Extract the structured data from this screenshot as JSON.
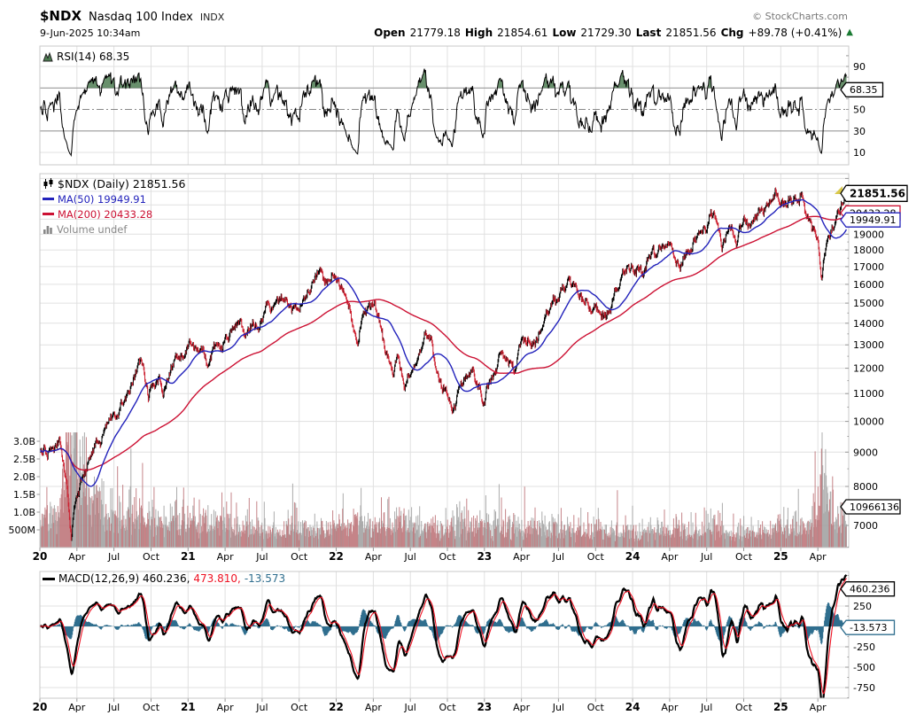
{
  "header": {
    "symbol": "$NDX",
    "name": "Nasdaq 100 Index",
    "exchange": "INDX",
    "datetime": "9-Jun-2025 10:34am",
    "credit": "© StockCharts.com",
    "quote": {
      "open_label": "Open",
      "open_value": "21779.18",
      "high_label": "High",
      "high_value": "21854.61",
      "low_label": "Low",
      "low_value": "21729.30",
      "last_label": "Last",
      "last_value": "21851.56",
      "chg_label": "Chg",
      "chg_value": "+89.78 (+0.41%)",
      "up_arrow": "▲"
    }
  },
  "rsi_panel": {
    "legend": "RSI(14) 68.35",
    "callout": "68.35",
    "axis_labels": [
      90,
      50,
      30,
      10
    ],
    "ref_lines": {
      "overbought": 70,
      "middle": 50,
      "oversold": 30
    }
  },
  "price_panel": {
    "legend_title": "$NDX (Daily) 21851.56",
    "legend_ma50": "MA(50) 19949.91",
    "legend_ma200": "MA(200) 20433.28",
    "legend_volume": "Volume undef",
    "callout_last": "21851.56",
    "callout_ma200": "20433.28",
    "callout_ma50": "19949.91",
    "callout_volume": "10966136",
    "axis_labels": [
      19000,
      18000,
      17000,
      16000,
      15000,
      14000,
      13000,
      12000,
      11000,
      10000,
      9000,
      8000,
      7000
    ],
    "volume_axis": [
      [
        "3.0B",
        3000
      ],
      [
        "2.5B",
        2500
      ],
      [
        "2.0B",
        2000
      ],
      [
        "1.5B",
        1500
      ],
      [
        "1.0B",
        1000
      ],
      [
        "500M",
        500
      ]
    ]
  },
  "macd_panel": {
    "legend_macd": "MACD(12,26,9) 460.236,",
    "legend_signal": "473.810,",
    "legend_hist": "-13.573",
    "callout_macd": "460.236",
    "callout_hist": "-13.573",
    "axis_labels": [
      250,
      -250,
      -500,
      -750
    ]
  },
  "x_axis": {
    "labels": [
      {
        "t": 0,
        "label": "20",
        "bold": true
      },
      {
        "t": 3,
        "label": "Apr"
      },
      {
        "t": 6,
        "label": "Jul"
      },
      {
        "t": 9,
        "label": "Oct"
      },
      {
        "t": 12,
        "label": "21",
        "bold": true
      },
      {
        "t": 15,
        "label": "Apr"
      },
      {
        "t": 18,
        "label": "Jul"
      },
      {
        "t": 21,
        "label": "Oct"
      },
      {
        "t": 24,
        "label": "22",
        "bold": true
      },
      {
        "t": 27,
        "label": "Apr"
      },
      {
        "t": 30,
        "label": "Jul"
      },
      {
        "t": 33,
        "label": "Oct"
      },
      {
        "t": 36,
        "label": "23",
        "bold": true
      },
      {
        "t": 39,
        "label": "Apr"
      },
      {
        "t": 42,
        "label": "Jul"
      },
      {
        "t": 45,
        "label": "Oct"
      },
      {
        "t": 48,
        "label": "24",
        "bold": true
      },
      {
        "t": 51,
        "label": "Apr"
      },
      {
        "t": 54,
        "label": "Jul"
      },
      {
        "t": 57,
        "label": "Oct"
      },
      {
        "t": 60,
        "label": "25",
        "bold": true
      },
      {
        "t": 63,
        "label": "Apr"
      }
    ]
  },
  "colors": {
    "ma50": "#2222bb",
    "ma200": "#cc1133",
    "candle_up": "#000000",
    "candle_down": "#cc2030",
    "vol_up": "#9e9e9e",
    "vol_down": "#bb6f73",
    "macd_line": "#000000",
    "macd_signal": "#ee1122",
    "macd_hist": "#2f6e8e",
    "rsi_line": "#000000",
    "rsi_fill": "#4e7d52",
    "legend_gray": "#888888",
    "up_green": "#1a7a33",
    "grid": "#e0e0e0"
  },
  "chart_data": {
    "type": "candlestick",
    "symbol": "$NDX",
    "timeframe": "Daily",
    "title": "$NDX (Daily) 21851.56",
    "x_axis_span": "Jan-2020 to Jun-2025, t = months since 1-Jan-2020",
    "price_scale": "log",
    "price_ylim": [
      6500,
      23400
    ],
    "ohlc_last": {
      "open": 21779.18,
      "high": 21854.61,
      "low": 21729.3,
      "last": 21851.56,
      "change": "+89.78 (+0.41%)"
    },
    "indicators": {
      "rsi_period": 14,
      "rsi_last": 68.35,
      "ma50_last": 19949.91,
      "ma200_last": 20433.28,
      "macd_params": [
        12,
        26,
        9
      ],
      "macd_last": 460.236,
      "macd_signal_last": 473.81,
      "macd_hist_last": -13.573,
      "volume_last": 10966136
    },
    "price_monthly_anchors": [
      [
        0,
        8950
      ],
      [
        1,
        9151
      ],
      [
        1.65,
        9710
      ],
      [
        2.55,
        6772
      ],
      [
        3,
        7813
      ],
      [
        4,
        8718
      ],
      [
        5,
        9555
      ],
      [
        6,
        10157
      ],
      [
        7,
        10905
      ],
      [
        8.15,
        12420
      ],
      [
        8.8,
        10940
      ],
      [
        9,
        11418
      ],
      [
        10,
        11052
      ],
      [
        11,
        12268
      ],
      [
        12,
        12888
      ],
      [
        13,
        12925
      ],
      [
        13.6,
        12210
      ],
      [
        14,
        12909
      ],
      [
        15,
        13091
      ],
      [
        16,
        13860
      ],
      [
        17,
        13687
      ],
      [
        18,
        14555
      ],
      [
        19,
        14960
      ],
      [
        20,
        15582
      ],
      [
        21,
        14689
      ],
      [
        22,
        15850
      ],
      [
        22.65,
        16765
      ],
      [
        23,
        16135
      ],
      [
        24,
        16320
      ],
      [
        25,
        14930
      ],
      [
        25.8,
        13065
      ],
      [
        26,
        14238
      ],
      [
        26.95,
        15265
      ],
      [
        28,
        12855
      ],
      [
        28.65,
        11691
      ],
      [
        29,
        12642
      ],
      [
        29.55,
        11037
      ],
      [
        30,
        11503
      ],
      [
        31,
        12948
      ],
      [
        31.5,
        13580
      ],
      [
        32,
        12272
      ],
      [
        33,
        10971
      ],
      [
        33.45,
        10440
      ],
      [
        34,
        11405
      ],
      [
        35,
        11994
      ],
      [
        35.95,
        10679
      ],
      [
        36,
        10939
      ],
      [
        37,
        12101
      ],
      [
        37.15,
        12790
      ],
      [
        38,
        12042
      ],
      [
        38.45,
        11830
      ],
      [
        39,
        13181
      ],
      [
        40,
        13245
      ],
      [
        41,
        14254
      ],
      [
        42,
        15179
      ],
      [
        42.6,
        15930
      ],
      [
        43,
        15757
      ],
      [
        44,
        15501
      ],
      [
        45,
        14715
      ],
      [
        45.85,
        14060
      ],
      [
        46,
        14410
      ],
      [
        47,
        15947
      ],
      [
        48,
        16825
      ],
      [
        49,
        17137
      ],
      [
        50,
        18043
      ],
      [
        51,
        18254
      ],
      [
        51.65,
        17037
      ],
      [
        52,
        17440
      ],
      [
        53,
        18536
      ],
      [
        54,
        19682
      ],
      [
        54.35,
        20675
      ],
      [
        55,
        19362
      ],
      [
        55.2,
        17895
      ],
      [
        56,
        19574
      ],
      [
        56.25,
        18421
      ],
      [
        57,
        20060
      ],
      [
        58,
        19890
      ],
      [
        59,
        20930
      ],
      [
        59.55,
        22133
      ],
      [
        60,
        21012
      ],
      [
        61,
        21478
      ],
      [
        61.65,
        22175
      ],
      [
        62,
        20884
      ],
      [
        63,
        19278
      ],
      [
        63.28,
        16542
      ],
      [
        63.5,
        17900
      ],
      [
        64,
        19571
      ],
      [
        65,
        21341
      ],
      [
        65.32,
        21851.56
      ]
    ],
    "volume_anchor_profile_millions": [
      [
        0,
        800
      ],
      [
        1.5,
        950
      ],
      [
        2.1,
        2500
      ],
      [
        2.6,
        3050
      ],
      [
        3.2,
        2300
      ],
      [
        4,
        1500
      ],
      [
        5,
        1050
      ],
      [
        6,
        880
      ],
      [
        7,
        800
      ],
      [
        8,
        830
      ],
      [
        9,
        880
      ],
      [
        10,
        800
      ],
      [
        11,
        760
      ],
      [
        12,
        700
      ],
      [
        14,
        640
      ],
      [
        16,
        560
      ],
      [
        18,
        500
      ],
      [
        20,
        480
      ],
      [
        22,
        520
      ],
      [
        24,
        560
      ],
      [
        26,
        640
      ],
      [
        28,
        620
      ],
      [
        30,
        650
      ],
      [
        32,
        560
      ],
      [
        34,
        620
      ],
      [
        36,
        560
      ],
      [
        38,
        540
      ],
      [
        40,
        480
      ],
      [
        42,
        510
      ],
      [
        44,
        460
      ],
      [
        46,
        480
      ],
      [
        48,
        440
      ],
      [
        50,
        470
      ],
      [
        52,
        450
      ],
      [
        54,
        430
      ],
      [
        55.2,
        640
      ],
      [
        56,
        450
      ],
      [
        58,
        440
      ],
      [
        60,
        520
      ],
      [
        61,
        560
      ],
      [
        62,
        600
      ],
      [
        63,
        820
      ],
      [
        63.3,
        2500
      ],
      [
        63.5,
        1900
      ],
      [
        64,
        1000
      ],
      [
        64.5,
        780
      ],
      [
        65,
        660
      ],
      [
        65.32,
        620
      ]
    ],
    "seed": 11
  }
}
